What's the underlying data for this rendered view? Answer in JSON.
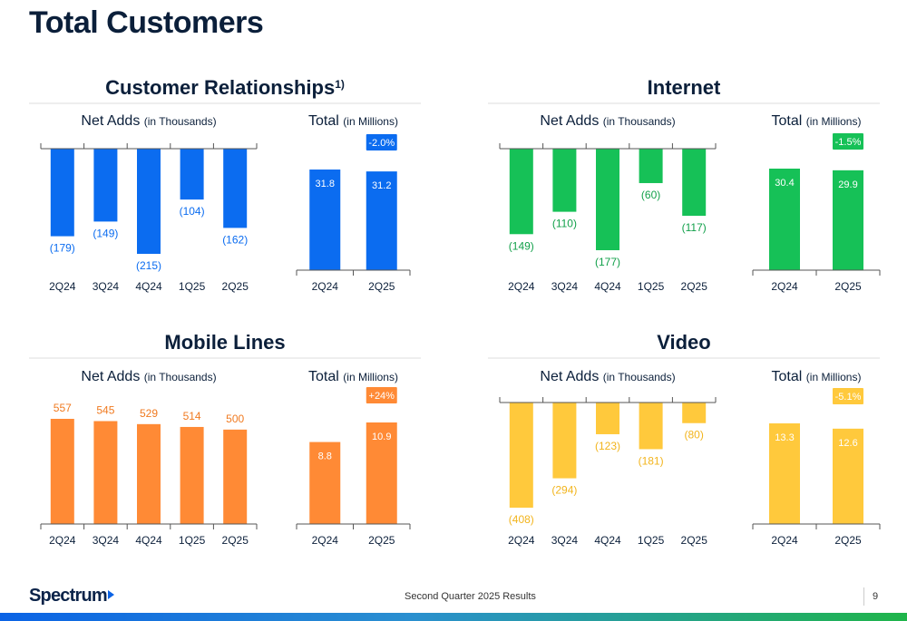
{
  "page_title": "Total Customers",
  "footer": {
    "logo_text": "Spectrum",
    "subtitle": "Second Quarter 2025 Results",
    "page_number": "9"
  },
  "chart_data": [
    {
      "section_title": "Customer Relationships",
      "section_title_sup": "1)",
      "color": "#0b6cf0",
      "label_color": "#0b6cf0",
      "net_adds": {
        "type": "bar",
        "title": "Net Adds",
        "title_unit": "(in Thousands)",
        "categories": [
          "2Q24",
          "3Q24",
          "4Q24",
          "1Q25",
          "2Q25"
        ],
        "values": [
          -179,
          -149,
          -215,
          -104,
          -162
        ],
        "labels": [
          "(179)",
          "(149)",
          "(215)",
          "(104)",
          "(162)"
        ],
        "ylim": [
          -215,
          0
        ]
      },
      "total": {
        "type": "bar",
        "title": "Total",
        "title_unit": "(in Millions)",
        "categories": [
          "2Q24",
          "2Q25"
        ],
        "values": [
          31.8,
          31.2
        ],
        "labels": [
          "31.8",
          "31.2"
        ],
        "change_badge": "-2.0%",
        "ylim": [
          0,
          31.8
        ]
      }
    },
    {
      "section_title": "Internet",
      "section_title_sup": "",
      "color": "#16c157",
      "label_color": "#12a04a",
      "net_adds": {
        "type": "bar",
        "title": "Net Adds",
        "title_unit": "(in Thousands)",
        "categories": [
          "2Q24",
          "3Q24",
          "4Q24",
          "1Q25",
          "2Q25"
        ],
        "values": [
          -149,
          -110,
          -177,
          -60,
          -117
        ],
        "labels": [
          "(149)",
          "(110)",
          "(177)",
          "(60)",
          "(117)"
        ],
        "ylim": [
          -177,
          0
        ]
      },
      "total": {
        "type": "bar",
        "title": "Total",
        "title_unit": "(in Millions)",
        "categories": [
          "2Q24",
          "2Q25"
        ],
        "values": [
          30.4,
          29.9
        ],
        "labels": [
          "30.4",
          "29.9"
        ],
        "change_badge": "-1.5%",
        "ylim": [
          0,
          30.4
        ]
      }
    },
    {
      "section_title": "Mobile Lines",
      "section_title_sup": "",
      "color": "#ff8a35",
      "label_color": "#f07a20",
      "net_adds": {
        "type": "bar",
        "title": "Net Adds",
        "title_unit": "(in Thousands)",
        "categories": [
          "2Q24",
          "3Q24",
          "4Q24",
          "1Q25",
          "2Q25"
        ],
        "values": [
          557,
          545,
          529,
          514,
          500
        ],
        "labels": [
          "557",
          "545",
          "529",
          "514",
          "500"
        ],
        "ylim": [
          0,
          557
        ]
      },
      "total": {
        "type": "bar",
        "title": "Total",
        "title_unit": "(in Millions)",
        "categories": [
          "2Q24",
          "2Q25"
        ],
        "values": [
          8.8,
          10.9
        ],
        "labels": [
          "8.8",
          "10.9"
        ],
        "change_badge": "+24%",
        "ylim": [
          0,
          10.9
        ]
      }
    },
    {
      "section_title": "Video",
      "section_title_sup": "",
      "color": "#ffc93c",
      "label_color": "#f2b41c",
      "net_adds": {
        "type": "bar",
        "title": "Net Adds",
        "title_unit": "(in Thousands)",
        "categories": [
          "2Q24",
          "3Q24",
          "4Q24",
          "1Q25",
          "2Q25"
        ],
        "values": [
          -408,
          -294,
          -123,
          -181,
          -80
        ],
        "labels": [
          "(408)",
          "(294)",
          "(123)",
          "(181)",
          "(80)"
        ],
        "ylim": [
          -408,
          0
        ]
      },
      "total": {
        "type": "bar",
        "title": "Total",
        "title_unit": "(in Millions)",
        "categories": [
          "2Q24",
          "2Q25"
        ],
        "values": [
          13.3,
          12.6
        ],
        "labels": [
          "13.3",
          "12.6"
        ],
        "change_badge": "-5.1%",
        "ylim": [
          0,
          13.3
        ]
      }
    }
  ]
}
